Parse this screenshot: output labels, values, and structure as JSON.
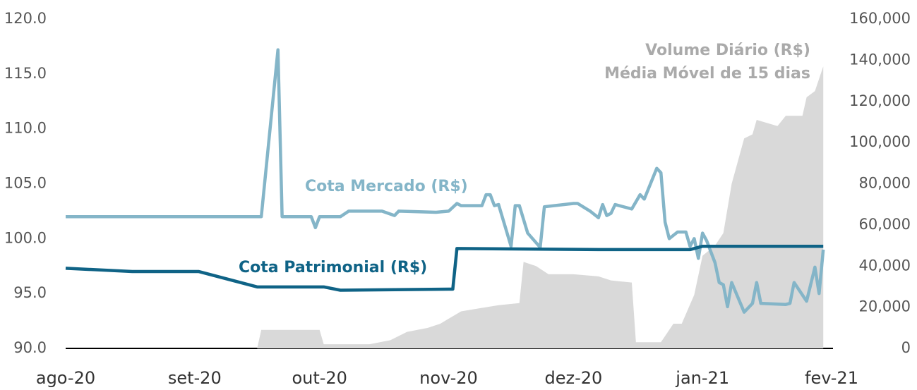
{
  "chart_data": {
    "type": "line",
    "annotations": [
      "Média Móvel de 15 dias"
    ],
    "xlim": [
      0,
      184
    ],
    "xticks": [
      {
        "value": 0,
        "label": "ago-20"
      },
      {
        "value": 31,
        "label": "set-20"
      },
      {
        "value": 61,
        "label": "out-20"
      },
      {
        "value": 92,
        "label": "nov-20"
      },
      {
        "value": 122,
        "label": "dez-20"
      },
      {
        "value": 153,
        "label": "jan-21"
      },
      {
        "value": 184,
        "label": "fev-21"
      }
    ],
    "ylim": [
      90,
      120
    ],
    "yticks": [
      {
        "value": 90,
        "label": "90.0"
      },
      {
        "value": 95,
        "label": "95.0"
      },
      {
        "value": 100,
        "label": "100.0"
      },
      {
        "value": 105,
        "label": "105.0"
      },
      {
        "value": 110,
        "label": "110.0"
      },
      {
        "value": 115,
        "label": "115.0"
      },
      {
        "value": 120,
        "label": "120.0"
      }
    ],
    "y2lim": [
      0,
      160000
    ],
    "y2ticks": [
      0,
      {
        "value": 20000,
        "label": "20,000"
      },
      {
        "value": 40000,
        "label": "40,000"
      },
      {
        "value": 60000,
        "label": "60,000"
      },
      {
        "value": 80000,
        "label": "80,000"
      },
      {
        "value": 100000,
        "label": "100,000"
      },
      {
        "value": 120000,
        "label": "120,000"
      },
      {
        "value": 140000,
        "label": "140,000"
      },
      {
        "value": 160000,
        "label": "160,000"
      }
    ],
    "series": [
      {
        "name": "Volume Diário (R$)",
        "color": "#d9d9d9",
        "axis": "y2",
        "kind": "area",
        "x": [
          0,
          46,
          47,
          61,
          62,
          73,
          78,
          82,
          87,
          90,
          95,
          98,
          101,
          104,
          109,
          110,
          113,
          116,
          122,
          128,
          131,
          136,
          137,
          143,
          146,
          148,
          151,
          153,
          156,
          158,
          160,
          163,
          165,
          166,
          171,
          173,
          177,
          178,
          180,
          182
        ],
        "values": [
          0,
          0,
          9000,
          9000,
          2000,
          2000,
          4000,
          8000,
          10000,
          12000,
          18000,
          19000,
          20000,
          21000,
          22000,
          42000,
          40000,
          36000,
          36000,
          35000,
          33000,
          32000,
          3000,
          3000,
          12000,
          12000,
          26000,
          45000,
          50000,
          56000,
          80000,
          102000,
          104000,
          111000,
          108000,
          113000,
          113000,
          122000,
          125000,
          137000
        ]
      },
      {
        "name": "Cota Mercado (R$)",
        "color": "#84b5c8",
        "x": [
          0,
          47,
          51,
          52,
          59,
          60,
          61,
          66,
          68,
          76,
          79,
          80,
          89,
          92,
          94,
          95,
          100,
          101,
          102,
          103,
          104,
          107,
          108,
          109,
          111,
          114,
          115,
          122,
          123,
          126,
          128,
          129,
          130,
          131,
          132,
          135,
          136,
          138,
          139,
          142,
          143,
          144,
          145,
          147,
          149,
          150,
          151,
          152,
          153,
          154,
          156,
          157,
          158,
          159,
          160,
          163,
          165,
          166,
          167,
          173,
          174,
          175,
          178,
          180,
          181,
          182
        ],
        "values": [
          102,
          102,
          117.2,
          102,
          102,
          101,
          102,
          102,
          102.5,
          102.5,
          102.1,
          102.5,
          102.4,
          102.5,
          103.2,
          103,
          103,
          104,
          104,
          103,
          103.1,
          99.3,
          103,
          103,
          100.5,
          99.2,
          102.9,
          103.2,
          103.2,
          102.5,
          101.9,
          103.1,
          102.1,
          102.3,
          103.1,
          102.8,
          102.7,
          104,
          103.6,
          106.4,
          106,
          101.5,
          100,
          100.6,
          100.6,
          99.3,
          100,
          98.2,
          100.5,
          99.8,
          97.8,
          96,
          95.8,
          93.8,
          96,
          93.3,
          94.1,
          96,
          94.1,
          94,
          94.1,
          96,
          94.3,
          97.4,
          95,
          99
        ]
      },
      {
        "name": "Cota Patrimonial (R$)",
        "color": "#0f6386",
        "x": [
          0,
          16,
          32,
          46,
          62,
          66,
          93,
          94,
          128,
          150,
          153,
          182
        ],
        "values": [
          97.3,
          97,
          97,
          95.6,
          95.6,
          95.3,
          95.4,
          99.1,
          99,
          99,
          99.3,
          99.3
        ]
      }
    ]
  }
}
